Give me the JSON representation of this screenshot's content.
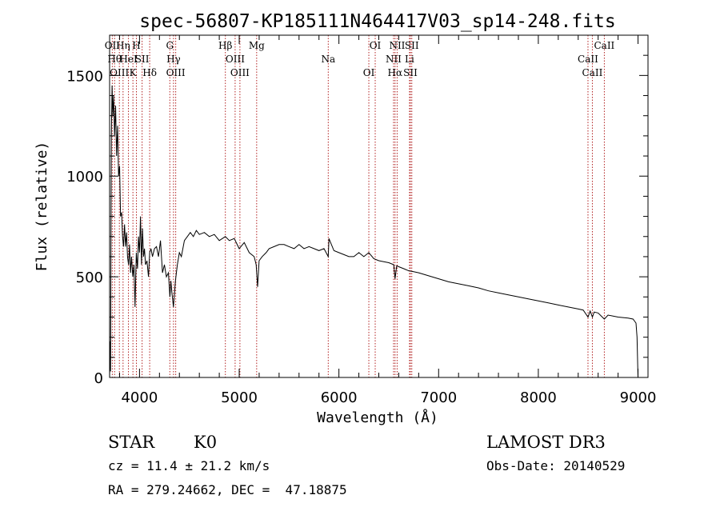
{
  "chart_data": {
    "type": "line",
    "title": "spec-56807-KP185111N464417V03_sp14-248.fits",
    "xlabel": "Wavelength (Å)",
    "ylabel": "Flux (relative)",
    "xlim": [
      3700,
      9100
    ],
    "ylim": [
      0,
      1700
    ],
    "x_ticks": [
      4000,
      5000,
      6000,
      7000,
      8000,
      9000
    ],
    "y_ticks": [
      0,
      500,
      1000,
      1500
    ],
    "series": [
      {
        "name": "flux",
        "x": [
          3700,
          3705,
          3710,
          3718,
          3725,
          3732,
          3740,
          3750,
          3760,
          3770,
          3780,
          3790,
          3800,
          3810,
          3820,
          3830,
          3840,
          3850,
          3860,
          3870,
          3880,
          3890,
          3900,
          3910,
          3920,
          3933,
          3945,
          3955,
          3968,
          3980,
          3990,
          4000,
          4010,
          4020,
          4030,
          4040,
          4050,
          4060,
          4075,
          4090,
          4102,
          4115,
          4130,
          4150,
          4170,
          4190,
          4210,
          4230,
          4250,
          4270,
          4290,
          4305,
          4315,
          4325,
          4340,
          4360,
          4380,
          4400,
          4420,
          4450,
          4480,
          4510,
          4540,
          4570,
          4600,
          4650,
          4700,
          4750,
          4800,
          4861,
          4900,
          4950,
          5000,
          5050,
          5100,
          5150,
          5170,
          5184,
          5200,
          5230,
          5270,
          5300,
          5350,
          5400,
          5450,
          5500,
          5550,
          5600,
          5650,
          5700,
          5750,
          5800,
          5850,
          5893,
          5900,
          5950,
          6000,
          6050,
          6100,
          6150,
          6200,
          6250,
          6300,
          6350,
          6400,
          6450,
          6500,
          6550,
          6563,
          6580,
          6600,
          6650,
          6700,
          6750,
          6800,
          6900,
          7000,
          7100,
          7200,
          7300,
          7400,
          7500,
          7600,
          7700,
          7800,
          7900,
          8000,
          8100,
          8200,
          8300,
          8400,
          8450,
          8498,
          8520,
          8542,
          8560,
          8600,
          8662,
          8700,
          8800,
          8900,
          8950,
          8980,
          8990,
          9000
        ],
        "y": [
          0,
          180,
          30,
          1200,
          1450,
          1300,
          1400,
          1200,
          1350,
          1100,
          1250,
          1000,
          1050,
          800,
          820,
          700,
          650,
          760,
          650,
          720,
          600,
          560,
          660,
          520,
          600,
          500,
          560,
          350,
          620,
          540,
          700,
          620,
          800,
          560,
          740,
          600,
          640,
          560,
          580,
          500,
          620,
          640,
          600,
          640,
          650,
          600,
          680,
          520,
          560,
          500,
          520,
          400,
          480,
          420,
          350,
          480,
          560,
          620,
          600,
          680,
          700,
          720,
          700,
          730,
          710,
          720,
          700,
          710,
          680,
          700,
          680,
          690,
          640,
          670,
          620,
          600,
          560,
          450,
          580,
          600,
          620,
          640,
          650,
          660,
          660,
          650,
          640,
          660,
          640,
          650,
          640,
          630,
          640,
          600,
          690,
          630,
          620,
          610,
          600,
          600,
          620,
          600,
          620,
          590,
          580,
          575,
          570,
          560,
          490,
          555,
          550,
          540,
          530,
          525,
          520,
          505,
          490,
          475,
          465,
          455,
          445,
          430,
          420,
          410,
          400,
          390,
          380,
          370,
          360,
          350,
          340,
          335,
          300,
          330,
          300,
          325,
          320,
          290,
          310,
          300,
          295,
          290,
          270,
          200,
          0
        ]
      }
    ],
    "lines": [
      {
        "wl": 3727,
        "labels": [
          "OII"
        ]
      },
      {
        "wl": 3750,
        "labels": [
          "Hθ"
        ]
      },
      {
        "wl": 3798,
        "labels": [
          "OIII"
        ]
      },
      {
        "wl": 3835,
        "labels": [
          "Hη"
        ]
      },
      {
        "wl": 3889,
        "labels": [
          "HeI"
        ]
      },
      {
        "wl": 3934,
        "labels": [
          "K"
        ]
      },
      {
        "wl": 3969,
        "labels": [
          "H"
        ]
      },
      {
        "wl": 4026,
        "labels": [
          "SII"
        ]
      },
      {
        "wl": 4102,
        "labels": [
          "Hδ"
        ]
      },
      {
        "wl": 4304,
        "labels": [
          "G"
        ]
      },
      {
        "wl": 4341,
        "labels": [
          "Hγ"
        ]
      },
      {
        "wl": 4363,
        "labels": [
          "OIII"
        ]
      },
      {
        "wl": 4861,
        "labels": [
          "Hβ"
        ]
      },
      {
        "wl": 4959,
        "labels": [
          "OIII"
        ]
      },
      {
        "wl": 5007,
        "labels": [
          "OIII"
        ]
      },
      {
        "wl": 5175,
        "labels": [
          "Mg"
        ]
      },
      {
        "wl": 5893,
        "labels": [
          "Na"
        ]
      },
      {
        "wl": 6300,
        "labels": [
          "OI"
        ]
      },
      {
        "wl": 6364,
        "labels": [
          "OI"
        ]
      },
      {
        "wl": 6548,
        "labels": [
          "NII"
        ]
      },
      {
        "wl": 6563,
        "labels": [
          "Hα"
        ]
      },
      {
        "wl": 6584,
        "labels": [
          "NII"
        ]
      },
      {
        "wl": 6708,
        "labels": [
          "Li"
        ]
      },
      {
        "wl": 6717,
        "labels": [
          "SII"
        ]
      },
      {
        "wl": 6731,
        "labels": [
          "SII"
        ]
      },
      {
        "wl": 8498,
        "labels": [
          "CaII"
        ]
      },
      {
        "wl": 8542,
        "labels": [
          "CaII"
        ]
      },
      {
        "wl": 8662,
        "labels": [
          "CaII"
        ]
      }
    ],
    "colors": {
      "spectrum": "#000000",
      "line_marker": "#b22222",
      "frame": "#000000"
    }
  },
  "footer": {
    "object_class": "STAR",
    "subclass": "K0",
    "survey": "LAMOST DR3",
    "redshift": "cz = 11.4 ± 21.2 km/s",
    "obs_date": "Obs-Date: 20140529",
    "coords": "RA = 279.24662, DEC =  47.18875"
  }
}
